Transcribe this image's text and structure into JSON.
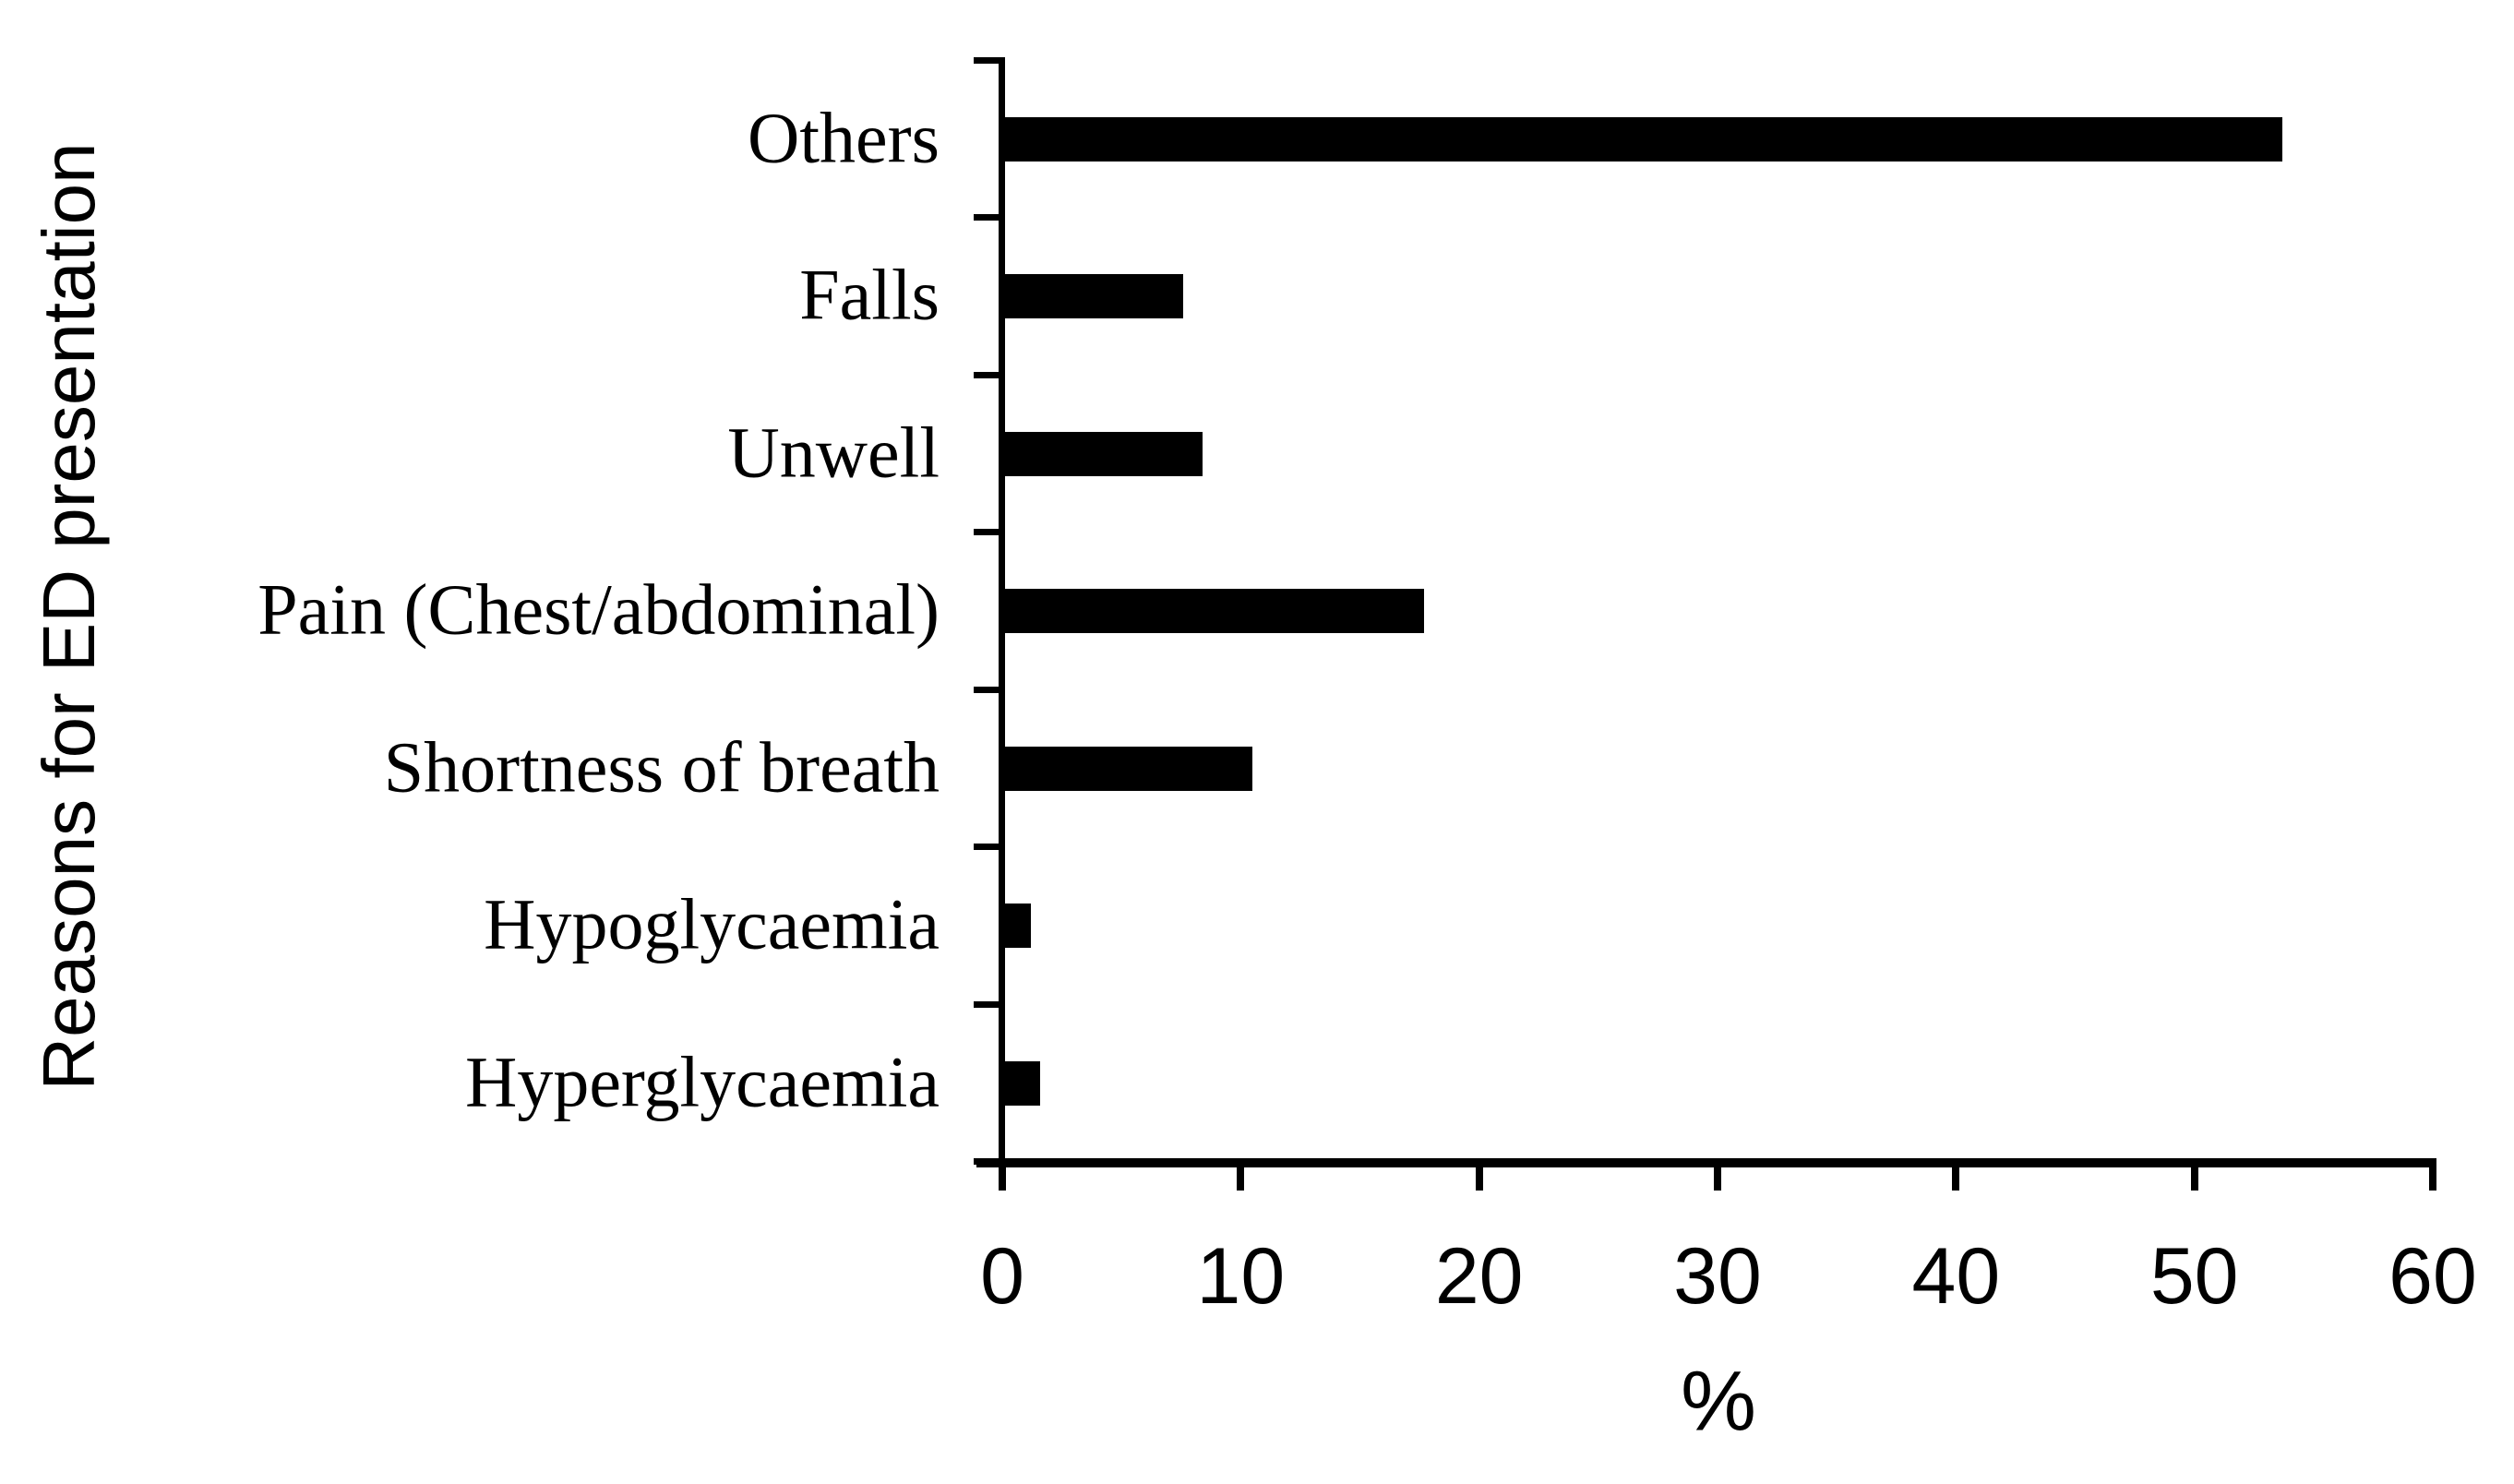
{
  "chart_data": {
    "type": "bar",
    "orientation": "horizontal",
    "title": "",
    "xlabel": "%",
    "ylabel": "Reasons for ED presentation",
    "categories": [
      "Others",
      "Falls",
      "Unwell",
      "Pain (Chest/abdominal)",
      "Shortness of breath",
      "Hypoglycaemia",
      "Hyperglycaemia"
    ],
    "values": [
      53.7,
      7.6,
      8.4,
      17.7,
      10.5,
      1.2,
      1.6
    ],
    "xlim": [
      0,
      60
    ],
    "xticks": [
      0,
      10,
      20,
      30,
      40,
      50,
      60
    ],
    "bar_color": "#000000",
    "background_color": "#ffffff",
    "grid": false,
    "legend": null
  }
}
